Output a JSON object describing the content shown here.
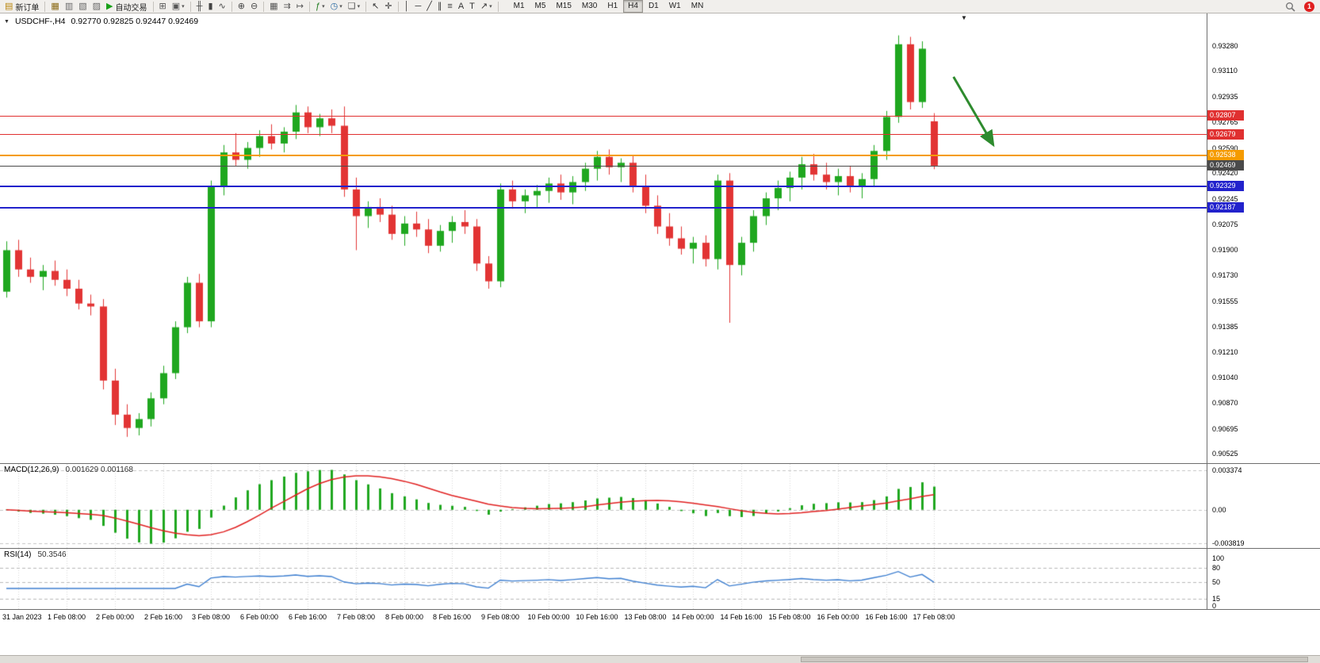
{
  "toolbar": {
    "buttons": [
      {
        "name": "new-order-button",
        "glyph": "▤",
        "color": "#b8860b",
        "label": "新订单"
      },
      {
        "sep": true
      },
      {
        "name": "market-watch-button",
        "glyph": "▦",
        "color": "#8a6914"
      },
      {
        "name": "data-window-button",
        "glyph": "▥",
        "color": "#666666"
      },
      {
        "name": "navigator-button",
        "glyph": "▧",
        "color": "#666666"
      },
      {
        "name": "terminal-button",
        "glyph": "▨",
        "color": "#666666"
      },
      {
        "name": "autotrading-button",
        "glyph": "▶",
        "color": "#18a018",
        "label": "自动交易"
      },
      {
        "sep": true
      },
      {
        "name": "new-chart-button",
        "glyph": "⊞",
        "color": "#555555"
      },
      {
        "name": "profiles-button",
        "glyph": "▣",
        "color": "#555555",
        "caret": true
      },
      {
        "sep": true
      },
      {
        "name": "bar-chart-button",
        "glyph": "╫",
        "color": "#444444"
      },
      {
        "name": "candlestick-chart-button",
        "glyph": "▮",
        "color": "#444444"
      },
      {
        "name": "line-chart-button",
        "glyph": "∿",
        "color": "#444444"
      },
      {
        "sep": true
      },
      {
        "name": "zoom-in-button",
        "glyph": "⊕",
        "color": "#444444"
      },
      {
        "name": "zoom-out-button",
        "glyph": "⊖",
        "color": "#444444"
      },
      {
        "sep": true
      },
      {
        "name": "tile-windows-button",
        "glyph": "▦",
        "color": "#555555"
      },
      {
        "name": "auto-scroll-button",
        "glyph": "⇉",
        "color": "#555555"
      },
      {
        "name": "chart-shift-button",
        "glyph": "↦",
        "color": "#555555"
      },
      {
        "sep": true
      },
      {
        "name": "indicators-button",
        "glyph": "ƒ",
        "color": "#1c7a1c",
        "caret": true
      },
      {
        "name": "periods-button",
        "glyph": "◷",
        "color": "#2f6ea5",
        "caret": true
      },
      {
        "name": "templates-button",
        "glyph": "❏",
        "color": "#555555",
        "caret": true
      },
      {
        "sep": true
      },
      {
        "name": "cursor-button",
        "glyph": "↖",
        "color": "#333333"
      },
      {
        "name": "crosshair-button",
        "glyph": "✛",
        "color": "#333333"
      },
      {
        "sep": true
      },
      {
        "name": "vertical-line-button",
        "glyph": "│",
        "color": "#333333"
      },
      {
        "name": "horizontal-line-button",
        "glyph": "─",
        "color": "#333333"
      },
      {
        "name": "trendline-button",
        "glyph": "╱",
        "color": "#333333"
      },
      {
        "name": "channel-button",
        "glyph": "∥",
        "color": "#333333"
      },
      {
        "name": "fibonacci-button",
        "glyph": "≡",
        "color": "#333333"
      },
      {
        "name": "text-button",
        "glyph": "A",
        "color": "#333333"
      },
      {
        "name": "label-button",
        "glyph": "T",
        "color": "#333333"
      },
      {
        "name": "arrows-button",
        "glyph": "↗",
        "color": "#333333",
        "caret": true
      },
      {
        "sep": true
      }
    ],
    "timeframes": [
      "M1",
      "M5",
      "M15",
      "M30",
      "H1",
      "H4",
      "D1",
      "W1",
      "MN"
    ],
    "active_timeframe": "H4",
    "notification_badge": "1"
  },
  "chart": {
    "symbol_period": "USDCHF-,H4",
    "ohlc": "0.92770 0.92825 0.92447 0.92469"
  },
  "chart_data": {
    "type": "candlestick",
    "symbol": "USDCHF-",
    "timeframe": "H4",
    "title": "USDCHF-,H4  0.92770 0.92825 0.92447 0.92469",
    "colors": {
      "up": "#1fa71f",
      "down": "#e23434",
      "macd_hist": "#1fa71f",
      "macd_signal": "#e02020",
      "rsi_line": "#3e7fd0",
      "grid": "#d8d8d8"
    },
    "y_axis": {
      "min": 0.905,
      "max": 0.9338,
      "labels": [
        "0.93280",
        "0.93110",
        "0.92935",
        "0.92765",
        "0.92590",
        "0.92420",
        "0.92245",
        "0.92075",
        "0.91900",
        "0.91730",
        "0.91555",
        "0.91385",
        "0.91210",
        "0.91040",
        "0.90870",
        "0.90695",
        "0.90525"
      ]
    },
    "x_labels": [
      {
        "i": 1,
        "t": "31 Jan 2023"
      },
      {
        "i": 5,
        "t": "1 Feb 08:00"
      },
      {
        "i": 9,
        "t": "2 Feb 00:00"
      },
      {
        "i": 13,
        "t": "2 Feb 16:00"
      },
      {
        "i": 17,
        "t": "3 Feb 08:00"
      },
      {
        "i": 21,
        "t": "6 Feb 00:00"
      },
      {
        "i": 25,
        "t": "6 Feb 16:00"
      },
      {
        "i": 29,
        "t": "7 Feb 08:00"
      },
      {
        "i": 33,
        "t": "8 Feb 00:00"
      },
      {
        "i": 37,
        "t": "8 Feb 16:00"
      },
      {
        "i": 41,
        "t": "9 Feb 08:00"
      },
      {
        "i": 45,
        "t": "10 Feb 00:00"
      },
      {
        "i": 49,
        "t": "10 Feb 16:00"
      },
      {
        "i": 53,
        "t": "13 Feb 08:00"
      },
      {
        "i": 57,
        "t": "14 Feb 00:00"
      },
      {
        "i": 61,
        "t": "14 Feb 16:00"
      },
      {
        "i": 65,
        "t": "15 Feb 08:00"
      },
      {
        "i": 69,
        "t": "16 Feb 00:00"
      },
      {
        "i": 73,
        "t": "16 Feb 16:00"
      },
      {
        "i": 77,
        "t": "17 Feb 08:00"
      }
    ],
    "candles": [
      [
        "31 Jan 12:00",
        0.9162,
        0.9196,
        0.9158,
        0.919
      ],
      [
        "31 Jan 16:00",
        0.919,
        0.9197,
        0.9172,
        0.9177
      ],
      [
        "31 Jan 20:00",
        0.9177,
        0.9185,
        0.9168,
        0.9172
      ],
      [
        "1 Feb 00:00",
        0.9172,
        0.918,
        0.9163,
        0.9176
      ],
      [
        "1 Feb 04:00",
        0.9176,
        0.9183,
        0.9166,
        0.917
      ],
      [
        "1 Feb 08:00",
        0.917,
        0.9177,
        0.9159,
        0.9164
      ],
      [
        "1 Feb 12:00",
        0.9164,
        0.917,
        0.915,
        0.9154
      ],
      [
        "1 Feb 16:00",
        0.9154,
        0.916,
        0.9146,
        0.9152
      ],
      [
        "1 Feb 20:00",
        0.9152,
        0.9157,
        0.9096,
        0.9102
      ],
      [
        "2 Feb 00:00",
        0.9102,
        0.911,
        0.9072,
        0.9079
      ],
      [
        "2 Feb 04:00",
        0.9079,
        0.9086,
        0.9064,
        0.907
      ],
      [
        "2 Feb 08:00",
        0.907,
        0.908,
        0.9065,
        0.9076
      ],
      [
        "2 Feb 12:00",
        0.9076,
        0.9094,
        0.9071,
        0.909
      ],
      [
        "2 Feb 16:00",
        0.909,
        0.9112,
        0.9086,
        0.9107
      ],
      [
        "2 Feb 20:00",
        0.9107,
        0.9142,
        0.9103,
        0.9138
      ],
      [
        "3 Feb 00:00",
        0.9138,
        0.9172,
        0.9134,
        0.9168
      ],
      [
        "3 Feb 04:00",
        0.9168,
        0.9174,
        0.9138,
        0.9142
      ],
      [
        "3 Feb 08:00",
        0.9142,
        0.9237,
        0.9138,
        0.9233
      ],
      [
        "3 Feb 12:00",
        0.9233,
        0.9261,
        0.9227,
        0.9256
      ],
      [
        "3 Feb 16:00",
        0.9256,
        0.9269,
        0.9247,
        0.9251
      ],
      [
        "3 Feb 20:00",
        0.9251,
        0.9263,
        0.9245,
        0.9259
      ],
      [
        "6 Feb 00:00",
        0.9259,
        0.9271,
        0.9253,
        0.9267
      ],
      [
        "6 Feb 04:00",
        0.9267,
        0.9275,
        0.9258,
        0.9262
      ],
      [
        "6 Feb 08:00",
        0.9262,
        0.9273,
        0.9256,
        0.927
      ],
      [
        "6 Feb 12:00",
        0.927,
        0.9288,
        0.9265,
        0.9283
      ],
      [
        "6 Feb 16:00",
        0.9283,
        0.9287,
        0.9269,
        0.9273
      ],
      [
        "6 Feb 20:00",
        0.9273,
        0.9282,
        0.9267,
        0.9279
      ],
      [
        "7 Feb 00:00",
        0.9279,
        0.9285,
        0.9269,
        0.9274
      ],
      [
        "7 Feb 04:00",
        0.9274,
        0.9287,
        0.9226,
        0.9231
      ],
      [
        "7 Feb 08:00",
        0.9231,
        0.9239,
        0.919,
        0.9213
      ],
      [
        "7 Feb 12:00",
        0.9213,
        0.9223,
        0.9205,
        0.9219
      ],
      [
        "7 Feb 16:00",
        0.9219,
        0.9225,
        0.9209,
        0.9214
      ],
      [
        "7 Feb 20:00",
        0.9214,
        0.922,
        0.9197,
        0.9201
      ],
      [
        "8 Feb 00:00",
        0.9201,
        0.9213,
        0.9193,
        0.9208
      ],
      [
        "8 Feb 04:00",
        0.9208,
        0.9216,
        0.9199,
        0.9204
      ],
      [
        "8 Feb 08:00",
        0.9204,
        0.9211,
        0.9188,
        0.9193
      ],
      [
        "8 Feb 12:00",
        0.9193,
        0.9207,
        0.9189,
        0.9203
      ],
      [
        "8 Feb 16:00",
        0.9203,
        0.9213,
        0.9195,
        0.9209
      ],
      [
        "8 Feb 20:00",
        0.9209,
        0.9217,
        0.9201,
        0.9206
      ],
      [
        "9 Feb 00:00",
        0.9206,
        0.9211,
        0.9176,
        0.9181
      ],
      [
        "9 Feb 04:00",
        0.9181,
        0.9186,
        0.9164,
        0.9169
      ],
      [
        "9 Feb 08:00",
        0.9169,
        0.9235,
        0.9165,
        0.9231
      ],
      [
        "9 Feb 12:00",
        0.9231,
        0.9237,
        0.9218,
        0.9223
      ],
      [
        "9 Feb 16:00",
        0.9223,
        0.9231,
        0.9215,
        0.9227
      ],
      [
        "9 Feb 20:00",
        0.9227,
        0.9234,
        0.9219,
        0.923
      ],
      [
        "10 Feb 00:00",
        0.923,
        0.9239,
        0.9222,
        0.9235
      ],
      [
        "10 Feb 04:00",
        0.9235,
        0.9241,
        0.9224,
        0.9229
      ],
      [
        "10 Feb 08:00",
        0.9229,
        0.924,
        0.9221,
        0.9236
      ],
      [
        "10 Feb 12:00",
        0.9236,
        0.9249,
        0.923,
        0.9245
      ],
      [
        "10 Feb 16:00",
        0.9245,
        0.9257,
        0.9237,
        0.9253
      ],
      [
        "10 Feb 20:00",
        0.9253,
        0.9258,
        0.9241,
        0.9246
      ],
      [
        "13 Feb 00:00",
        0.9246,
        0.9252,
        0.9236,
        0.9249
      ],
      [
        "13 Feb 04:00",
        0.9249,
        0.9254,
        0.9229,
        0.9233
      ],
      [
        "13 Feb 08:00",
        0.9233,
        0.9241,
        0.9215,
        0.922
      ],
      [
        "13 Feb 12:00",
        0.922,
        0.9227,
        0.9201,
        0.9206
      ],
      [
        "13 Feb 16:00",
        0.9206,
        0.9215,
        0.9193,
        0.9198
      ],
      [
        "13 Feb 20:00",
        0.9198,
        0.9206,
        0.9187,
        0.9191
      ],
      [
        "14 Feb 00:00",
        0.9191,
        0.9199,
        0.9181,
        0.9195
      ],
      [
        "14 Feb 04:00",
        0.9195,
        0.92,
        0.9179,
        0.9184
      ],
      [
        "14 Feb 08:00",
        0.9184,
        0.9241,
        0.9177,
        0.9237
      ],
      [
        "14 Feb 12:00",
        0.9237,
        0.9242,
        0.9141,
        0.918
      ],
      [
        "14 Feb 16:00",
        0.918,
        0.9199,
        0.9173,
        0.9195
      ],
      [
        "14 Feb 20:00",
        0.9195,
        0.9217,
        0.9189,
        0.9213
      ],
      [
        "15 Feb 00:00",
        0.9213,
        0.9229,
        0.9207,
        0.9225
      ],
      [
        "15 Feb 04:00",
        0.9225,
        0.9237,
        0.9217,
        0.9232
      ],
      [
        "15 Feb 08:00",
        0.9232,
        0.9243,
        0.9223,
        0.9239
      ],
      [
        "15 Feb 12:00",
        0.9239,
        0.9253,
        0.9231,
        0.9248
      ],
      [
        "15 Feb 16:00",
        0.9248,
        0.9255,
        0.9237,
        0.9241
      ],
      [
        "15 Feb 20:00",
        0.9241,
        0.9249,
        0.9231,
        0.9236
      ],
      [
        "16 Feb 00:00",
        0.9236,
        0.9245,
        0.9227,
        0.924
      ],
      [
        "16 Feb 04:00",
        0.924,
        0.9247,
        0.9229,
        0.9233
      ],
      [
        "16 Feb 08:00",
        0.9233,
        0.9242,
        0.9225,
        0.9238
      ],
      [
        "16 Feb 12:00",
        0.9238,
        0.9261,
        0.9233,
        0.9257
      ],
      [
        "16 Feb 16:00",
        0.9257,
        0.9284,
        0.9251,
        0.928
      ],
      [
        "16 Feb 20:00",
        0.928,
        0.9335,
        0.9276,
        0.9329
      ],
      [
        "17 Feb 00:00",
        0.9329,
        0.9334,
        0.9285,
        0.929
      ],
      [
        "17 Feb 04:00",
        0.929,
        0.9331,
        0.9286,
        0.9326
      ],
      [
        "17 Feb 08:00",
        0.9277,
        0.92825,
        0.92447,
        0.92469
      ]
    ],
    "hlines": [
      {
        "price": 0.92807,
        "label": "0.92807",
        "color": "#e03030",
        "width": 1,
        "role": "resistance"
      },
      {
        "price": 0.92679,
        "label": "0.92679",
        "color": "#e03030",
        "width": 1,
        "role": "resistance"
      },
      {
        "price": 0.92538,
        "label": "0.92538",
        "color": "#f59b00",
        "width": 2,
        "role": "pivot"
      },
      {
        "price": 0.92469,
        "label": "0.92469",
        "color": "#4a4a4a",
        "width": 1,
        "role": "current-price"
      },
      {
        "price": 0.92329,
        "label": "0.92329",
        "color": "#2222cc",
        "width": 2,
        "role": "support"
      },
      {
        "price": 0.92187,
        "label": "0.92187",
        "color": "#2222cc",
        "width": 2,
        "role": "support"
      }
    ],
    "annotations": [
      {
        "type": "arrow",
        "b1": 78.6,
        "p1": 0.9307,
        "b2": 81.9,
        "p2": 0.9261,
        "color": "#2e8b2e",
        "width": 3
      }
    ],
    "indicators": {
      "macd": {
        "name": "MACD(12,26,9)",
        "values": "0.001629 0.001168",
        "axis_labels": [
          "0.003374",
          "0.00",
          "-0.003819"
        ]
      },
      "rsi": {
        "name": "RSI(14)",
        "value": "50.3546",
        "axis_labels": [
          "100",
          "80",
          "50",
          "15",
          "0"
        ],
        "levels": [
          80,
          50,
          15
        ]
      }
    }
  }
}
